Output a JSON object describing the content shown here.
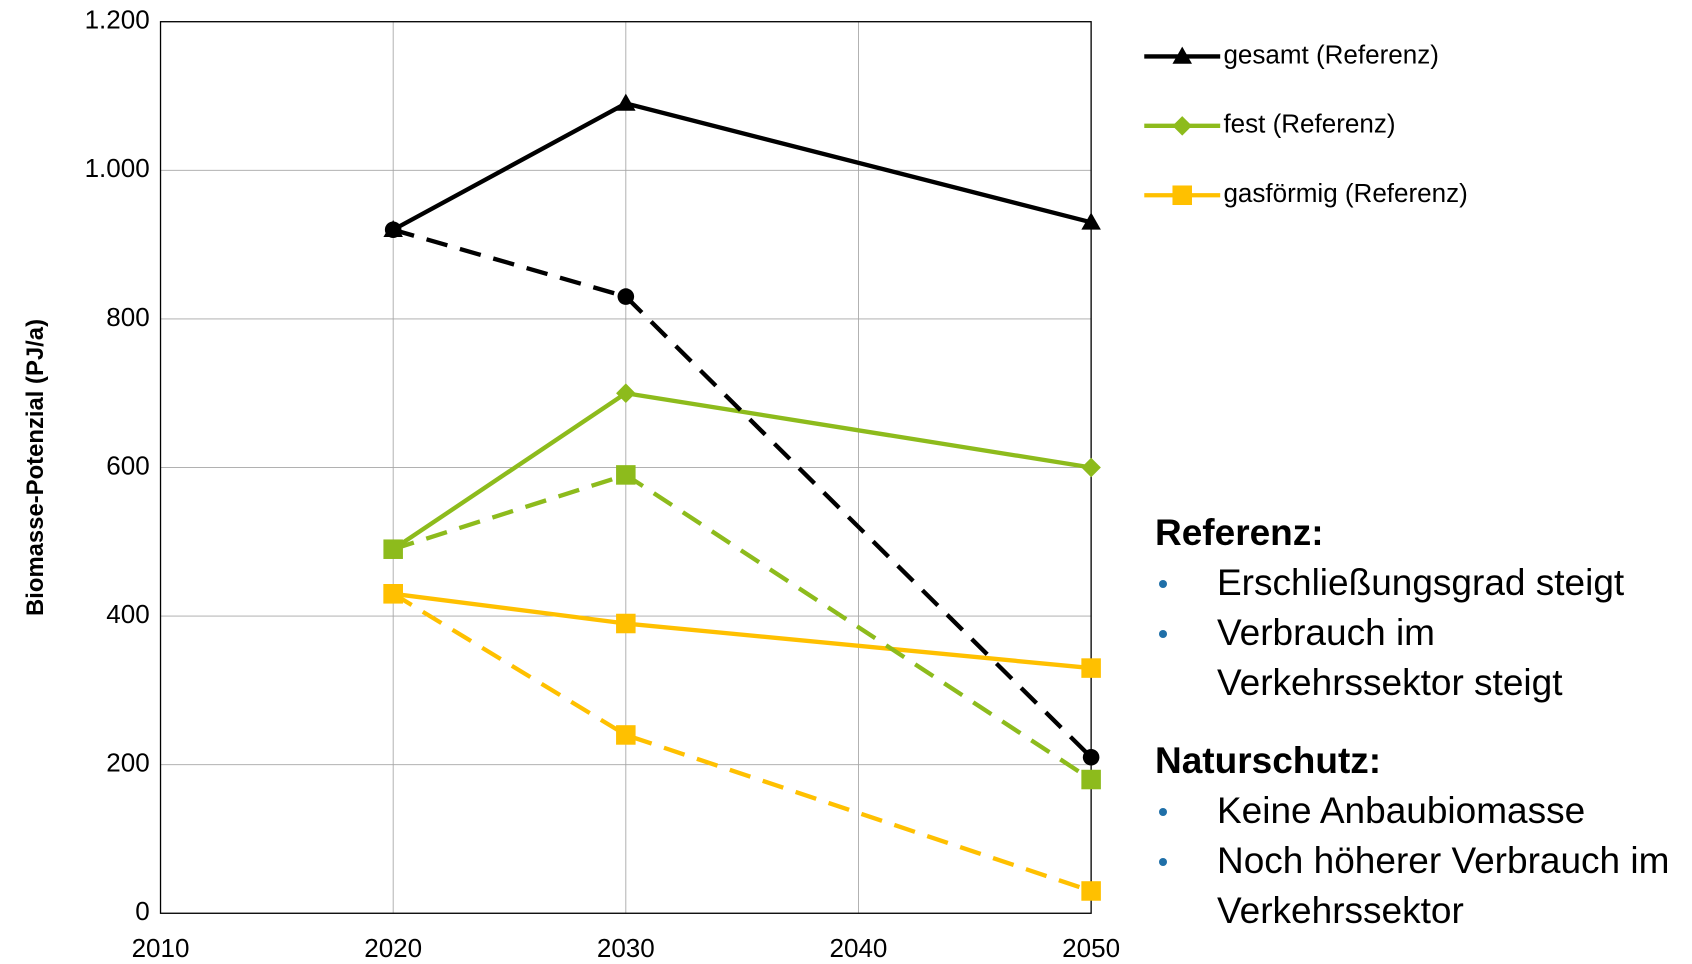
{
  "chart_data": {
    "type": "line",
    "y_label": "Biomasse-Potenzial (PJ/a)",
    "x": [
      2020,
      2030,
      2050
    ],
    "xlim": [
      2010,
      2050
    ],
    "xticks": [
      2010,
      2020,
      2030,
      2040,
      2050
    ],
    "ylim": [
      0,
      1200
    ],
    "yticks": [
      0,
      200,
      400,
      600,
      800,
      {
        "value": 1000,
        "label": "1.000"
      },
      {
        "value": 1200,
        "label": "1.200"
      }
    ],
    "grid": true,
    "legend": "top-right",
    "series": [
      {
        "name": "gesamt (Referenz)",
        "color": "#000000",
        "marker": "triangle",
        "dashed": false,
        "values": [
          920,
          1090,
          930
        ]
      },
      {
        "name": "fest (Referenz)",
        "color": "#8dbb1c",
        "marker": "diamond",
        "dashed": false,
        "values": [
          490,
          700,
          600
        ]
      },
      {
        "name": "gasförmig (Referenz)",
        "color": "#ffc000",
        "marker": "square",
        "dashed": false,
        "values": [
          430,
          390,
          330
        ]
      },
      {
        "color": "#000000",
        "marker": "circle",
        "dashed": true,
        "values": [
          920,
          830,
          210
        ]
      },
      {
        "color": "#8dbb1c",
        "marker": "square",
        "dashed": true,
        "values": [
          490,
          590,
          180
        ]
      },
      {
        "color": "#ffc000",
        "marker": "square",
        "dashed": true,
        "values": [
          430,
          240,
          30
        ]
      }
    ],
    "notes": [
      {
        "heading": "Referenz:",
        "items": [
          "Erschließungsgrad steigt",
          "Verbrauch im Verkehrssektor steigt"
        ]
      },
      {
        "heading": "Naturschutz:",
        "items": [
          "Keine Anbaubiomasse",
          "Noch höherer Verbrauch im Verkehrssektor"
        ]
      }
    ]
  }
}
